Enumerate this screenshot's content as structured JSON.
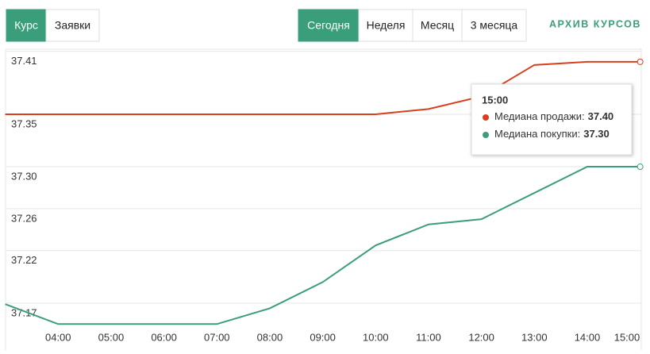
{
  "tabs": [
    "Курс",
    "Заявки"
  ],
  "periods": [
    "Сегодня",
    "Неделя",
    "Месяц",
    "3 месяца"
  ],
  "archive_link": "АРХИВ КУРСОВ",
  "chart_data": {
    "type": "line",
    "categories": [
      null,
      "04:00",
      "05:00",
      "06:00",
      "07:00",
      "08:00",
      "09:00",
      "10:00",
      "11:00",
      "12:00",
      "13:00",
      "14:00",
      "15:00"
    ],
    "series": [
      {
        "color": "#d6401f",
        "values": [
          37.35,
          37.35,
          37.35,
          37.35,
          37.35,
          37.35,
          37.35,
          37.35,
          37.355,
          37.367,
          37.397,
          37.4,
          37.4
        ]
      },
      {
        "color": "#3a9e7b",
        "values": [
          37.169,
          37.15,
          37.15,
          37.15,
          37.15,
          37.165,
          37.19,
          37.225,
          37.245,
          37.25,
          37.275,
          37.3,
          37.3
        ]
      }
    ],
    "ylim": [
      37.126,
      37.412
    ],
    "yticks": [
      37.17,
      37.22,
      37.26,
      {
        "value": 37.3,
        "label": "37.30"
      },
      37.35,
      37.41
    ],
    "grid": true,
    "tooltip": {
      "title": "15:00",
      "items": [
        {
          "label": "Медиана продажи:",
          "value": "37.40"
        },
        {
          "label": "Медиана покупки:",
          "value": "37.30"
        }
      ]
    }
  }
}
